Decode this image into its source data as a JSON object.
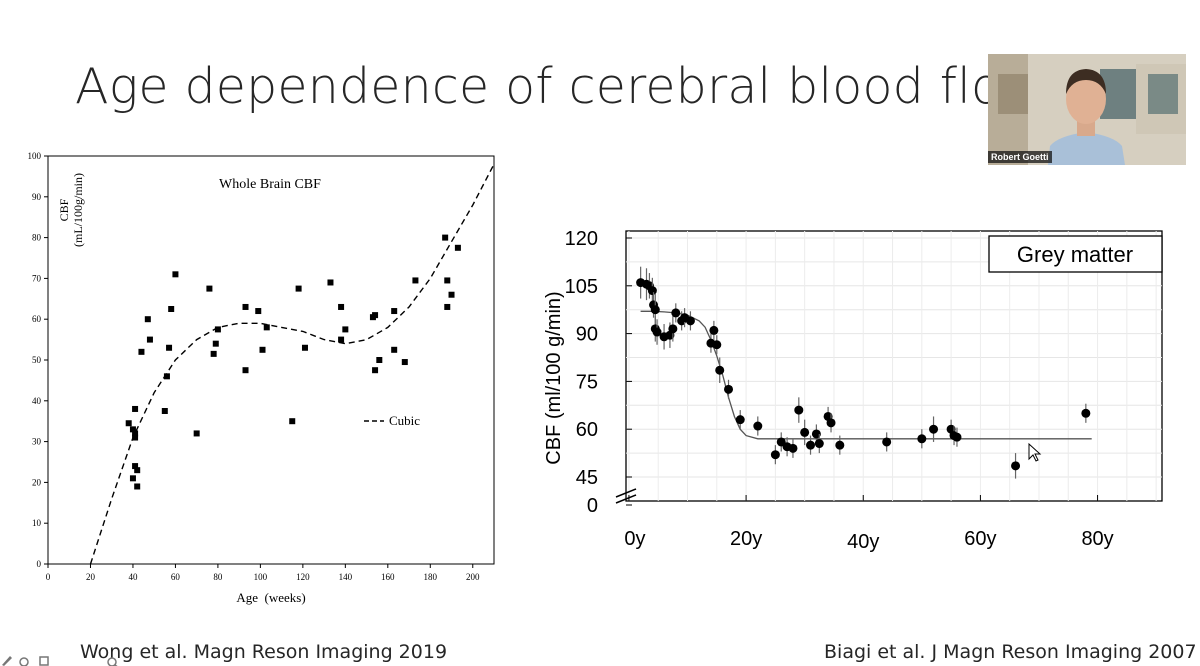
{
  "slide": {
    "title": "Age dependence of cerebral blood flow",
    "citation_left": "Wong et al. Magn Reson Imaging 2019",
    "citation_right": "Biagi et al. J Magn Reson Imaging 2007"
  },
  "webcam": {
    "name": "Robert Goetti"
  },
  "chart_data": [
    {
      "type": "scatter",
      "title": "Whole Brain CBF",
      "xlabel": "Age  (weeks)",
      "ylabel_line1": "CBF",
      "ylabel_line2": "(mL/100g/min)",
      "xlim": [
        0,
        210
      ],
      "ylim": [
        0,
        100
      ],
      "xticks": [
        0,
        20,
        40,
        60,
        80,
        100,
        120,
        140,
        160,
        180,
        200
      ],
      "yticks": [
        0,
        10,
        20,
        30,
        40,
        50,
        60,
        70,
        80,
        90,
        100
      ],
      "legend": "Cubic",
      "legend_position": "center-right",
      "fit": {
        "type": "cubic",
        "curve_x": [
          20,
          30,
          40,
          50,
          60,
          70,
          80,
          90,
          100,
          110,
          120,
          130,
          140,
          150,
          160,
          170,
          180,
          190,
          200,
          210
        ],
        "curve_y": [
          0,
          16,
          31,
          42,
          50,
          55,
          58,
          59,
          59,
          58,
          57,
          55,
          54,
          55,
          58,
          63,
          70,
          79,
          88,
          98
        ]
      },
      "points": [
        [
          38,
          34.5
        ],
        [
          40,
          33
        ],
        [
          41,
          32
        ],
        [
          41,
          31
        ],
        [
          41,
          38
        ],
        [
          40,
          21
        ],
        [
          41,
          24
        ],
        [
          42,
          23
        ],
        [
          42,
          19
        ],
        [
          44,
          52
        ],
        [
          47,
          60
        ],
        [
          48,
          55
        ],
        [
          55,
          37.5
        ],
        [
          56,
          46
        ],
        [
          57,
          53
        ],
        [
          58,
          62.5
        ],
        [
          60,
          71
        ],
        [
          70,
          32
        ],
        [
          76,
          67.5
        ],
        [
          78,
          51.5
        ],
        [
          79,
          54
        ],
        [
          80,
          57.5
        ],
        [
          93,
          63
        ],
        [
          93,
          47.5
        ],
        [
          99,
          62
        ],
        [
          101,
          52.5
        ],
        [
          103,
          58
        ],
        [
          115,
          35
        ],
        [
          118,
          67.5
        ],
        [
          121,
          53
        ],
        [
          133,
          69
        ],
        [
          138,
          63
        ],
        [
          138,
          55
        ],
        [
          140,
          57.5
        ],
        [
          153,
          60.5
        ],
        [
          154,
          61
        ],
        [
          154,
          47.5
        ],
        [
          156,
          50
        ],
        [
          163,
          62
        ],
        [
          163,
          52.5
        ],
        [
          168,
          49.5
        ],
        [
          173,
          69.5
        ],
        [
          187,
          80
        ],
        [
          188,
          69.5
        ],
        [
          188,
          63
        ],
        [
          190,
          66
        ],
        [
          193,
          77.5
        ]
      ]
    },
    {
      "type": "scatter",
      "title": "",
      "legend": "Grey matter",
      "legend_position": "top-right",
      "xlabel": "",
      "ylabel": "CBF (ml/100 g/min)",
      "x_tick_labels": [
        "0y",
        "20y",
        "40y",
        "60y",
        "80y"
      ],
      "x_tick_values": [
        0,
        20,
        40,
        60,
        80
      ],
      "y_tick_labels": [
        "120",
        "105",
        "90",
        "75",
        "60",
        "45",
        "0"
      ],
      "y_tick_values": [
        120,
        105,
        90,
        75,
        60,
        45,
        0
      ],
      "xlim": [
        -0.5,
        91
      ],
      "ylim": [
        0,
        121
      ],
      "axis_break": true,
      "fit": {
        "type": "sigmoid",
        "curve_x": [
          2,
          4,
          6,
          8,
          10,
          12,
          13,
          14,
          15,
          16,
          17,
          18,
          19,
          20,
          22,
          25,
          30,
          40,
          60,
          79
        ],
        "curve_y": [
          97,
          97,
          96.8,
          96.5,
          95.8,
          94,
          92,
          88,
          83,
          77,
          70,
          64,
          60,
          58,
          57,
          57,
          57,
          57,
          57,
          57
        ]
      },
      "points": [
        [
          2,
          106,
          5
        ],
        [
          3,
          105.5,
          5
        ],
        [
          3.5,
          105,
          4
        ],
        [
          4,
          103.5,
          4
        ],
        [
          4.2,
          99,
          4
        ],
        [
          4.5,
          97.5,
          5
        ],
        [
          4.5,
          91.5,
          4
        ],
        [
          4.8,
          90.5,
          4
        ],
        [
          6,
          89,
          4
        ],
        [
          7,
          89.5,
          4
        ],
        [
          7.5,
          91.5,
          4
        ],
        [
          8,
          96.5,
          3
        ],
        [
          9,
          94,
          3
        ],
        [
          9.5,
          95,
          3
        ],
        [
          10.5,
          94,
          3
        ],
        [
          14,
          87,
          3
        ],
        [
          14.5,
          91,
          3
        ],
        [
          15,
          86.5,
          3
        ],
        [
          15.5,
          78.5,
          4
        ],
        [
          17,
          72.5,
          3
        ],
        [
          19,
          63,
          3
        ],
        [
          22,
          61,
          3
        ],
        [
          25,
          52,
          3
        ],
        [
          26,
          56,
          3
        ],
        [
          27,
          54.5,
          3
        ],
        [
          28,
          54,
          3
        ],
        [
          29,
          66,
          4
        ],
        [
          30,
          59,
          4
        ],
        [
          31,
          55,
          3
        ],
        [
          32,
          58.5,
          3
        ],
        [
          32.5,
          55.5,
          3
        ],
        [
          34,
          64,
          3
        ],
        [
          34.5,
          62,
          3
        ],
        [
          36,
          55,
          3
        ],
        [
          44,
          56,
          3
        ],
        [
          50,
          57,
          3
        ],
        [
          52,
          60,
          4
        ],
        [
          55,
          60,
          3
        ],
        [
          55.5,
          58,
          3
        ],
        [
          56,
          57.5,
          3
        ],
        [
          66,
          48.5,
          4
        ],
        [
          78,
          65,
          3
        ]
      ]
    }
  ]
}
